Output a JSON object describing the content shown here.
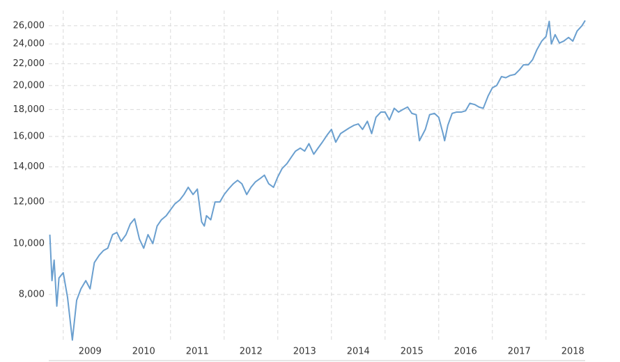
{
  "chart_data": {
    "type": "line",
    "log_scale": true,
    "grid": true,
    "x": [
      2008.75,
      2008.79,
      2008.83,
      2008.88,
      2008.92,
      2009.0,
      2009.08,
      2009.17,
      2009.25,
      2009.33,
      2009.42,
      2009.5,
      2009.58,
      2009.67,
      2009.75,
      2009.83,
      2009.92,
      2010.0,
      2010.08,
      2010.17,
      2010.25,
      2010.33,
      2010.42,
      2010.5,
      2010.58,
      2010.67,
      2010.75,
      2010.83,
      2010.92,
      2011.0,
      2011.08,
      2011.17,
      2011.25,
      2011.33,
      2011.42,
      2011.5,
      2011.58,
      2011.63,
      2011.67,
      2011.75,
      2011.83,
      2011.92,
      2012.0,
      2012.08,
      2012.17,
      2012.25,
      2012.33,
      2012.42,
      2012.5,
      2012.58,
      2012.67,
      2012.75,
      2012.83,
      2012.92,
      2013.0,
      2013.08,
      2013.17,
      2013.25,
      2013.33,
      2013.42,
      2013.5,
      2013.58,
      2013.67,
      2013.75,
      2013.83,
      2013.92,
      2014.0,
      2014.08,
      2014.17,
      2014.25,
      2014.33,
      2014.42,
      2014.5,
      2014.58,
      2014.67,
      2014.75,
      2014.83,
      2014.92,
      2015.0,
      2015.08,
      2015.17,
      2015.25,
      2015.33,
      2015.42,
      2015.5,
      2015.58,
      2015.64,
      2015.75,
      2015.83,
      2015.92,
      2016.0,
      2016.08,
      2016.11,
      2016.17,
      2016.25,
      2016.33,
      2016.42,
      2016.5,
      2016.58,
      2016.67,
      2016.75,
      2016.83,
      2016.92,
      2017.0,
      2017.08,
      2017.17,
      2017.25,
      2017.33,
      2017.42,
      2017.5,
      2017.58,
      2017.67,
      2017.75,
      2017.83,
      2017.92,
      2018.0,
      2018.06,
      2018.1,
      2018.17,
      2018.25,
      2018.33,
      2018.42,
      2018.5,
      2018.58,
      2018.67,
      2018.73
    ],
    "series": [
      {
        "color": "#6a9fcf",
        "values": [
          10400,
          8500,
          9300,
          7600,
          8600,
          8800,
          7900,
          6550,
          7800,
          8200,
          8500,
          8200,
          9200,
          9500,
          9700,
          9800,
          10400,
          10500,
          10100,
          10400,
          10900,
          11150,
          10200,
          9800,
          10400,
          10000,
          10800,
          11100,
          11300,
          11600,
          11900,
          12100,
          12400,
          12800,
          12400,
          12700,
          11000,
          10800,
          11300,
          11100,
          12000,
          12000,
          12400,
          12700,
          13000,
          13200,
          13000,
          12400,
          12800,
          13100,
          13300,
          13500,
          13000,
          12800,
          13400,
          13900,
          14200,
          14600,
          15000,
          15200,
          15000,
          15500,
          14800,
          15200,
          15600,
          16100,
          16500,
          15600,
          16200,
          16400,
          16600,
          16800,
          16900,
          16500,
          17100,
          16200,
          17400,
          17800,
          17800,
          17200,
          18100,
          17800,
          18000,
          18200,
          17700,
          17600,
          15700,
          16500,
          17600,
          17700,
          17400,
          16200,
          15700,
          16800,
          17700,
          17800,
          17800,
          17900,
          18500,
          18400,
          18200,
          18100,
          19100,
          19800,
          20000,
          20800,
          20700,
          20900,
          21000,
          21400,
          21900,
          21900,
          22400,
          23400,
          24300,
          24800,
          26500,
          24000,
          25000,
          24100,
          24300,
          24700,
          24300,
          25400,
          26000,
          26600
        ]
      }
    ],
    "xlim": [
      2008.73,
      2018.73
    ],
    "xticks": [
      2009,
      2010,
      2011,
      2012,
      2013,
      2014,
      2015,
      2016,
      2017,
      2018
    ],
    "ylim": [
      6520,
      27800
    ],
    "yticks": [
      {
        "value": 8000,
        "label": "8,000"
      },
      {
        "value": 10000,
        "label": "10,000"
      },
      {
        "value": 12000,
        "label": "12,000"
      },
      {
        "value": 14000,
        "label": "14,000"
      },
      {
        "value": 16000,
        "label": "16,000"
      },
      {
        "value": 18000,
        "label": "18,000"
      },
      {
        "value": 20000,
        "label": "20,000"
      },
      {
        "value": 22000,
        "label": "22,000"
      },
      {
        "value": 24000,
        "label": "24,000"
      },
      {
        "value": 26000,
        "label": "26,000"
      }
    ]
  }
}
